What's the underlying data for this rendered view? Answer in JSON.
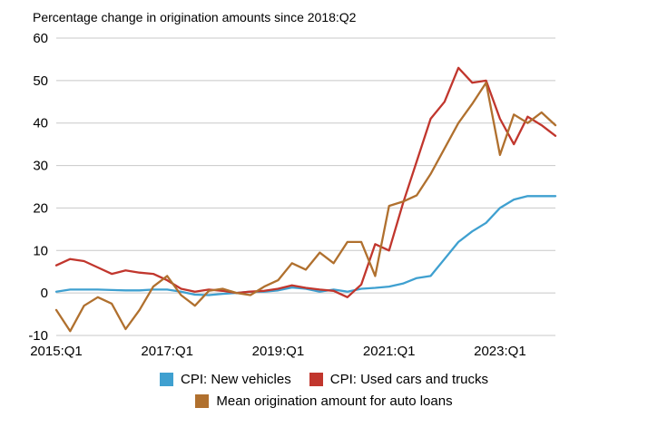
{
  "title": "Percentage change in origination amounts since 2018:Q2",
  "chart_data": {
    "type": "line",
    "title": "Percentage change in origination amounts since 2018:Q2",
    "xlabel": "",
    "ylabel": "",
    "ylim": [
      -10,
      60
    ],
    "y_ticks": [
      -10,
      0,
      10,
      20,
      30,
      40,
      50,
      60
    ],
    "grid": true,
    "legend_position": "bottom",
    "x_tick_labels": [
      "2015:Q1",
      "2017:Q1",
      "2019:Q1",
      "2021:Q1",
      "2023:Q1"
    ],
    "x_tick_indices": [
      0,
      8,
      16,
      24,
      32
    ],
    "quarters": [
      "2015:Q1",
      "2015:Q2",
      "2015:Q3",
      "2015:Q4",
      "2016:Q1",
      "2016:Q2",
      "2016:Q3",
      "2016:Q4",
      "2017:Q1",
      "2017:Q2",
      "2017:Q3",
      "2017:Q4",
      "2018:Q1",
      "2018:Q2",
      "2018:Q3",
      "2018:Q4",
      "2019:Q1",
      "2019:Q2",
      "2019:Q3",
      "2019:Q4",
      "2020:Q1",
      "2020:Q2",
      "2020:Q3",
      "2020:Q4",
      "2021:Q1",
      "2021:Q2",
      "2021:Q3",
      "2021:Q4",
      "2022:Q1",
      "2022:Q2",
      "2022:Q3",
      "2022:Q4",
      "2023:Q1",
      "2023:Q2",
      "2023:Q3",
      "2023:Q4",
      "2024:Q1"
    ],
    "series": [
      {
        "name": "CPI: New vehicles",
        "color": "#3fa0d0",
        "values": [
          0.3,
          0.8,
          0.8,
          0.8,
          0.7,
          0.6,
          0.6,
          0.8,
          0.8,
          0.3,
          -0.4,
          -0.5,
          -0.2,
          0.0,
          0.3,
          0.3,
          0.6,
          1.3,
          1.0,
          0.3,
          0.8,
          0.3,
          1.0,
          1.2,
          1.5,
          2.2,
          3.5,
          4.0,
          8.0,
          12.0,
          14.5,
          16.5,
          20.0,
          22.0,
          22.8,
          22.8,
          22.8
        ]
      },
      {
        "name": "CPI: Used cars and trucks",
        "color": "#c1362d",
        "values": [
          6.5,
          8.0,
          7.5,
          6.0,
          4.5,
          5.3,
          4.8,
          4.5,
          3.0,
          1.0,
          0.3,
          0.8,
          0.5,
          0.0,
          0.3,
          0.5,
          1.0,
          1.8,
          1.2,
          0.8,
          0.5,
          -1.0,
          2.0,
          11.5,
          10.0,
          21.0,
          31.0,
          41.0,
          45.0,
          53.0,
          49.5,
          50.0,
          41.0,
          35.0,
          41.5,
          39.5,
          37.0
        ]
      },
      {
        "name": "Mean origination amount for auto loans",
        "color": "#b0702e",
        "values": [
          -4.0,
          -9.0,
          -3.0,
          -1.0,
          -2.5,
          -8.5,
          -4.0,
          1.5,
          4.0,
          -0.5,
          -3.0,
          0.5,
          1.0,
          0.0,
          -0.5,
          1.5,
          3.0,
          7.0,
          5.5,
          9.5,
          7.0,
          12.0,
          12.0,
          4.0,
          20.5,
          21.5,
          23.0,
          28.0,
          34.0,
          40.0,
          44.5,
          49.5,
          32.5,
          42.0,
          40.0,
          42.5,
          39.5
        ]
      }
    ]
  }
}
